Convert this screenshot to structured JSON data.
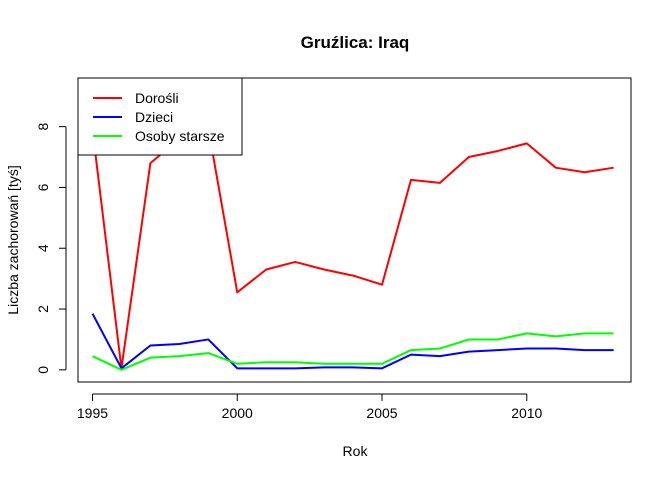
{
  "chart_data": {
    "type": "line",
    "title": "Gruźlica: Iraq",
    "xlabel": "Rok",
    "ylabel": "Liczba zachorowań [tyś]",
    "xlim": [
      1994.5,
      2013.6
    ],
    "ylim": [
      -0.4,
      9.6
    ],
    "xticks": [
      1995,
      2000,
      2005,
      2010
    ],
    "yticks": [
      0,
      2,
      4,
      6,
      8
    ],
    "x": [
      1995,
      1996,
      1997,
      1998,
      1999,
      2000,
      2001,
      2002,
      2003,
      2004,
      2005,
      2006,
      2007,
      2008,
      2009,
      2010,
      2011,
      2012,
      2013
    ],
    "series": [
      {
        "name": "Dorośli",
        "color": "#ff0000",
        "values": [
          7.9,
          0.05,
          6.8,
          7.6,
          7.95,
          2.55,
          3.3,
          3.55,
          3.3,
          3.1,
          2.8,
          6.25,
          6.15,
          7.0,
          7.2,
          7.45,
          6.65,
          6.5,
          6.65
        ]
      },
      {
        "name": "Dzieci",
        "color": "#0000ff",
        "values": [
          1.85,
          0.05,
          0.8,
          0.85,
          1.0,
          0.05,
          0.05,
          0.05,
          0.08,
          0.08,
          0.05,
          0.5,
          0.45,
          0.6,
          0.65,
          0.7,
          0.7,
          0.65,
          0.65
        ]
      },
      {
        "name": "Osoby starsze",
        "color": "#00ff00",
        "values": [
          0.45,
          0.0,
          0.4,
          0.45,
          0.55,
          0.2,
          0.25,
          0.25,
          0.2,
          0.2,
          0.2,
          0.65,
          0.7,
          1.0,
          1.0,
          1.2,
          1.1,
          1.2,
          1.2
        ]
      }
    ],
    "legend": "top-left",
    "grid": false
  }
}
